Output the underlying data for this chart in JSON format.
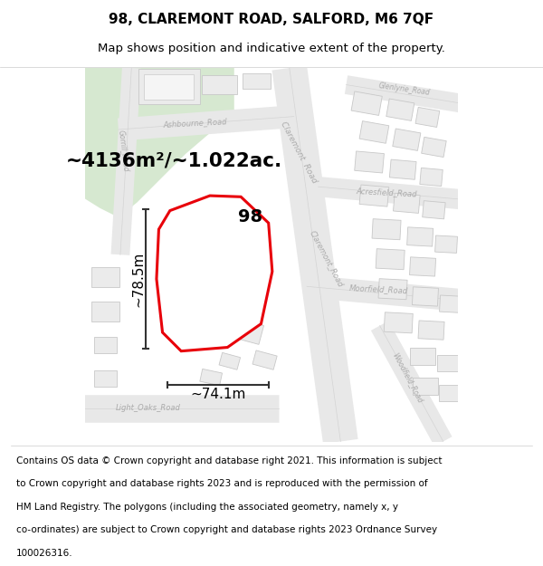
{
  "title": "98, CLAREMONT ROAD, SALFORD, M6 7QF",
  "subtitle": "Map shows position and indicative extent of the property.",
  "footer_lines": [
    "Contains OS data © Crown copyright and database right 2021. This information is subject",
    "to Crown copyright and database rights 2023 and is reproduced with the permission of",
    "HM Land Registry. The polygons (including the associated geometry, namely x, y",
    "co-ordinates) are subject to Crown copyright and database rights 2023 Ordnance Survey",
    "100026316."
  ],
  "area_label": "~4136m²/~1.022ac.",
  "width_label": "~74.1m",
  "height_label": "~78.5m",
  "property_number": "98",
  "bg_color": "#ffffff",
  "map_bg": "#ffffff",
  "green_area_color": "#d6e8d0",
  "road_color": "#e8e8e8",
  "road_line_color": "#d4d4d4",
  "red_line_color": "#e8000a",
  "building_fill": "#ebebeb",
  "building_stroke": "#c8c8c8",
  "street_text_color": "#aaaaaa",
  "dim_line_color": "#333333",
  "title_fontsize": 11,
  "subtitle_fontsize": 9.5,
  "footer_fontsize": 7.5,
  "label_fontsize": 13
}
